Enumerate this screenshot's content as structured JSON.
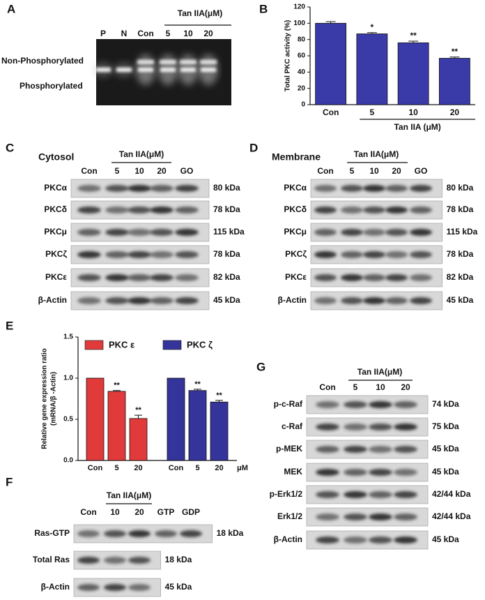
{
  "chart_data": [
    {
      "panel": "B",
      "type": "bar",
      "y_label": "Total PKC activity (%)",
      "x_label": "Tan IIA (μM)",
      "categories": [
        "Con",
        "5",
        "10",
        "20"
      ],
      "values": [
        100,
        87,
        76,
        57
      ],
      "errors": [
        2,
        1.5,
        2,
        1.5
      ],
      "significance": [
        null,
        "*",
        "**",
        "**"
      ],
      "color": "#3a3aa8",
      "ylim": [
        0,
        120
      ],
      "yticks": [
        0,
        20,
        40,
        60,
        80,
        100,
        120
      ]
    },
    {
      "panel": "E",
      "type": "grouped-bar",
      "y_label": "Relative gene expression ratio",
      "y_label_2": "(mRNA/β -Actin)",
      "categories": [
        "Con",
        "5",
        "20"
      ],
      "x_unit": "μM",
      "series": [
        {
          "name": "PKC ε",
          "color": "#e03a3a",
          "values": [
            1.0,
            0.84,
            0.51
          ],
          "errors": [
            0,
            0.01,
            0.04
          ],
          "significance": [
            null,
            "**",
            "**"
          ]
        },
        {
          "name": "PKC ζ",
          "color": "#34349a",
          "values": [
            1.0,
            0.85,
            0.71
          ],
          "errors": [
            0,
            0.015,
            0.02
          ],
          "significance": [
            null,
            "**",
            "**"
          ]
        }
      ],
      "ylim": [
        0,
        1.5
      ],
      "yticks": [
        {
          "value": 0,
          "label": "0.0"
        },
        {
          "value": 0.5,
          "label": "0.5"
        },
        {
          "value": 1.0,
          "label": "1.0"
        },
        {
          "value": 1.5,
          "label": "1.5"
        }
      ]
    }
  ],
  "panels": {
    "A": {
      "label": "A",
      "group_label": "Tan IIA(μM)",
      "lanes": [
        "P",
        "N",
        "Con",
        "5",
        "10",
        "20"
      ],
      "bands": [
        "Non-Phosphorylated",
        "Phosphorylated"
      ]
    },
    "C": {
      "label": "C",
      "title": "Cytosol",
      "group_label": "Tan IIA(μM)",
      "lanes": [
        "Con",
        "5",
        "10",
        "20",
        "GO"
      ],
      "rows": [
        {
          "name": "PKCα",
          "kda": "80 kDa"
        },
        {
          "name": "PKCδ",
          "kda": "78 kDa"
        },
        {
          "name": "PKCμ",
          "kda": "115 kDa"
        },
        {
          "name": "PKCζ",
          "kda": "78 kDa"
        },
        {
          "name": "PKCε",
          "kda": "82 kDa"
        },
        {
          "name": "β-Actin",
          "kda": "45 kDa"
        }
      ]
    },
    "D": {
      "label": "D",
      "title": "Membrane",
      "group_label": "Tan IIA(μM)",
      "lanes": [
        "Con",
        "5",
        "10",
        "20",
        "GO"
      ],
      "rows": [
        {
          "name": "PKCα",
          "kda": "80 kDa"
        },
        {
          "name": "PKCδ",
          "kda": "78 kDa"
        },
        {
          "name": "PKCμ",
          "kda": "115 kDa"
        },
        {
          "name": "PKCζ",
          "kda": "78 kDa"
        },
        {
          "name": "PKCε",
          "kda": "82 kDa"
        },
        {
          "name": "β-Actin",
          "kda": "45 kDa"
        }
      ]
    },
    "F": {
      "label": "F",
      "group_label": "Tan IIA(μM)",
      "lanes": [
        "Con",
        "10",
        "20",
        "GTP",
        "GDP"
      ],
      "rows": [
        {
          "name": "Ras-GTP",
          "kda": "18 kDa"
        },
        {
          "name": "Total Ras",
          "kda": "18 kDa"
        },
        {
          "name": "β-Actin",
          "kda": "45 kDa"
        }
      ]
    },
    "G": {
      "label": "G",
      "group_label": "Tan IIA(μM)",
      "lanes": [
        "Con",
        "5",
        "10",
        "20"
      ],
      "rows": [
        {
          "name": "p-c-Raf",
          "kda": "74 kDa"
        },
        {
          "name": "c-Raf",
          "kda": "75 kDa"
        },
        {
          "name": "p-MEK",
          "kda": "45 kDa"
        },
        {
          "name": "MEK",
          "kda": "45 kDa"
        },
        {
          "name": "p-Erk1/2",
          "kda": "42/44 kDa"
        },
        {
          "name": "Erk1/2",
          "kda": "42/44 kDa"
        },
        {
          "name": "β-Actin",
          "kda": "45 kDa"
        }
      ]
    }
  }
}
